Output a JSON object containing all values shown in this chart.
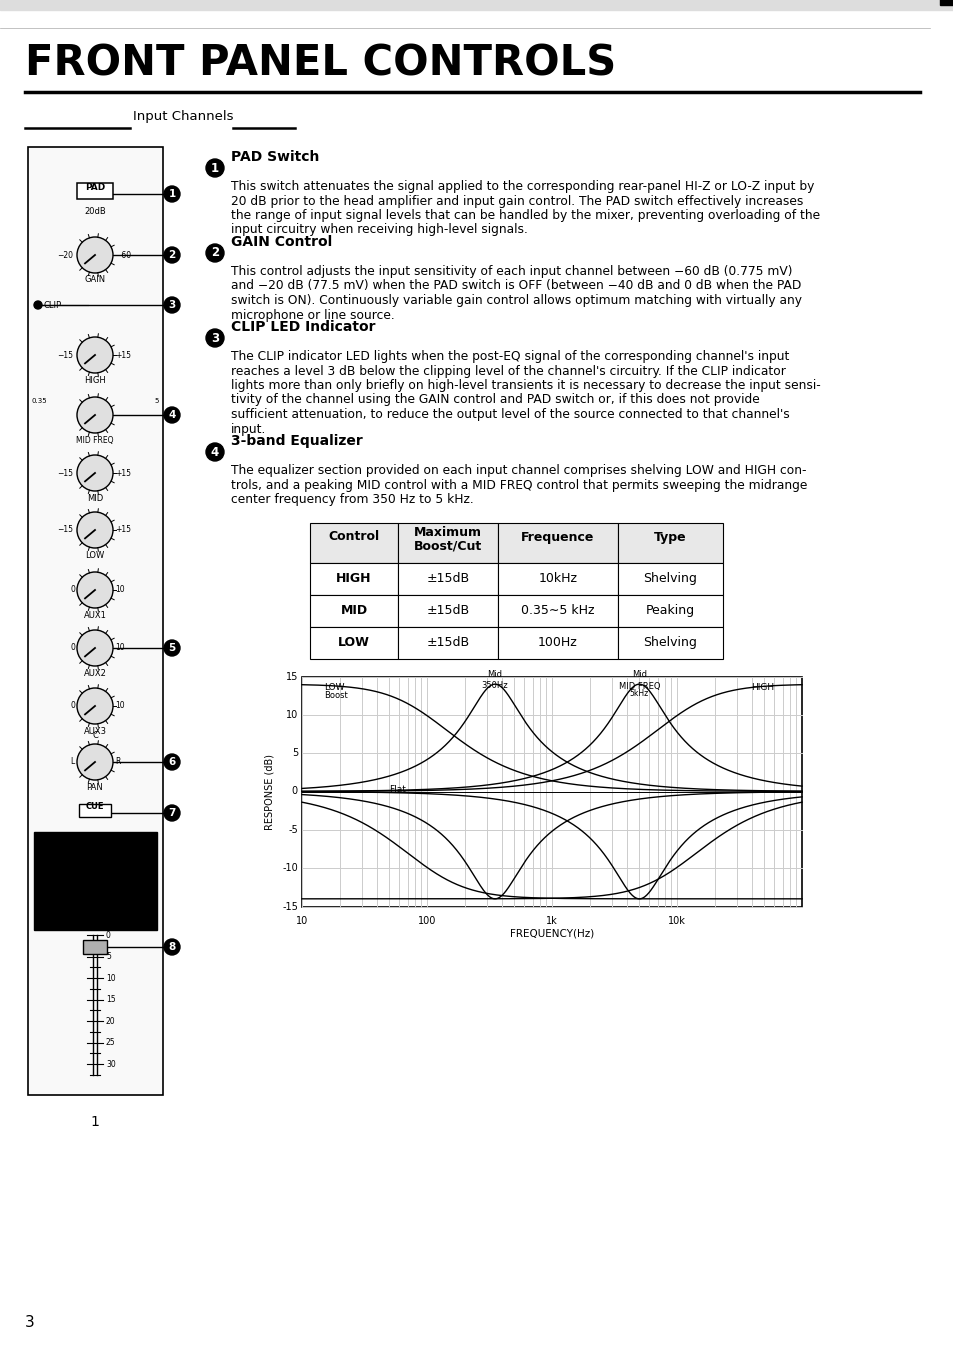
{
  "bg_color": "#ffffff",
  "title": "FRONT PANEL CONTROLS",
  "section_header": "Input Channels",
  "items": [
    {
      "num": "1",
      "heading": "PAD Switch",
      "body": "This switch attenuates the signal applied to the corresponding rear-panel HI-Z or LO-Z input by\n20 dB prior to the head amplifier and input gain control. The PAD switch effectively increases\nthe range of input signal levels that can be handled by the mixer, preventing overloading of the\ninput circuitry when receiving high-level signals."
    },
    {
      "num": "2",
      "heading": "GAIN Control",
      "body": "This control adjusts the input sensitivity of each input channel between −60 dB (0.775 mV)\nand −20 dB (77.5 mV) when the PAD switch is OFF (between −40 dB and 0 dB when the PAD\nswitch is ON). Continuously variable gain control allows optimum matching with virtually any\nmicrophone or line source."
    },
    {
      "num": "3",
      "heading": "CLIP LED Indicator",
      "body": "The CLIP indicator LED lights when the post-EQ signal of the corresponding channel's input\nreaches a level 3 dB below the clipping level of the channel's circuitry. If the CLIP indicator\nlights more than only briefly on high-level transients it is necessary to decrease the input sensi-\ntivity of the channel using the GAIN control and PAD switch or, if this does not provide\nsufficient attenuation, to reduce the output level of the source connected to that channel's\ninput."
    },
    {
      "num": "4",
      "heading": "3-band Equalizer",
      "body": "The equalizer section provided on each input channel comprises shelving LOW and HIGH con-\ntrols, and a peaking MID control with a MID FREQ control that permits sweeping the midrange\ncenter frequency from 350 Hz to 5 kHz."
    }
  ],
  "table_headers": [
    "Control",
    "Maximum\nBoost/Cut",
    "Frequence",
    "Type"
  ],
  "table_rows": [
    [
      "HIGH",
      "±15dB",
      "10kHz",
      "Shelving"
    ],
    [
      "MID",
      "±15dB",
      "0.35∼5 kHz",
      "Peaking"
    ],
    [
      "LOW",
      "±15dB",
      "100Hz",
      "Shelving"
    ]
  ],
  "page_number": "3"
}
